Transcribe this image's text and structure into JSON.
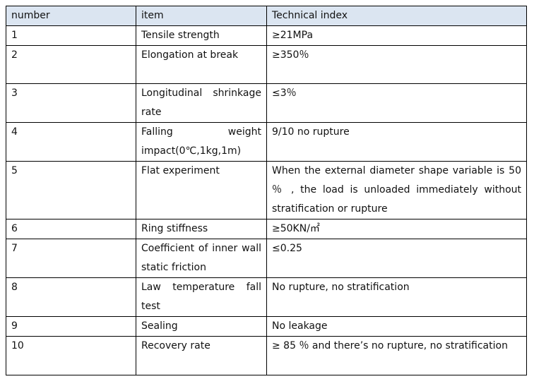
{
  "table": {
    "header": [
      "number",
      "item",
      "Technical index"
    ],
    "rows": [
      [
        "1",
        "Tensile strength",
        "≥21MPa"
      ],
      [
        "2",
        "Elongation at break",
        "≥350％"
      ],
      [
        "3",
        "Longitudinal shrinkage rate",
        "≤3％"
      ],
      [
        "4",
        "Falling weight impact(0℃,1kg,1m)",
        "9/10 no rupture"
      ],
      [
        "5",
        "Flat experiment",
        "When the external diameter shape variable is 50 ％ , the load is unloaded immediately without stratification or rupture"
      ],
      [
        "6",
        "Ring stiffness",
        "≥50KN/㎡"
      ],
      [
        "7",
        "Coefficient of inner wall static friction",
        "≤0.25"
      ],
      [
        "8",
        "Law temperature fall test",
        "No rupture, no stratification"
      ],
      [
        "9",
        "Sealing",
        "No leakage"
      ],
      [
        "10",
        "Recovery rate",
        "≥ 85 ％  and there’s no rupture, no stratification"
      ]
    ]
  }
}
